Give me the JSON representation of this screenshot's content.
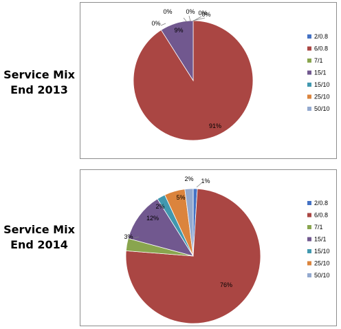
{
  "chart_data": [
    {
      "type": "pie",
      "title": "Service Mix End 2013",
      "title_lines": [
        "Service Mix",
        "End 2013"
      ],
      "categories": [
        "2/0.8",
        "6/0.8",
        "7/1",
        "15/1",
        "15/10",
        "25/10",
        "50/10"
      ],
      "values": [
        0,
        91,
        0,
        9,
        0,
        0,
        0
      ],
      "labels": [
        "0%",
        "91%",
        "0%",
        "9%",
        "0%",
        "0%",
        "0%"
      ],
      "legend": "right"
    },
    {
      "type": "pie",
      "title": "Service Mix End 2014",
      "title_lines": [
        "Service Mix",
        "End 2014"
      ],
      "categories": [
        "2/0.8",
        "6/0.8",
        "7/1",
        "15/1",
        "15/10",
        "25/10",
        "50/10"
      ],
      "values": [
        1,
        76,
        3,
        12,
        2,
        5,
        2
      ],
      "labels": [
        "1%",
        "76%",
        "3%",
        "12%",
        "2%",
        "5%",
        "2%"
      ],
      "legend": "right"
    }
  ],
  "colors": [
    "#4472C4",
    "#AA4643",
    "#89A54E",
    "#71588F",
    "#4198AF",
    "#DB843D",
    "#93A9CF"
  ]
}
